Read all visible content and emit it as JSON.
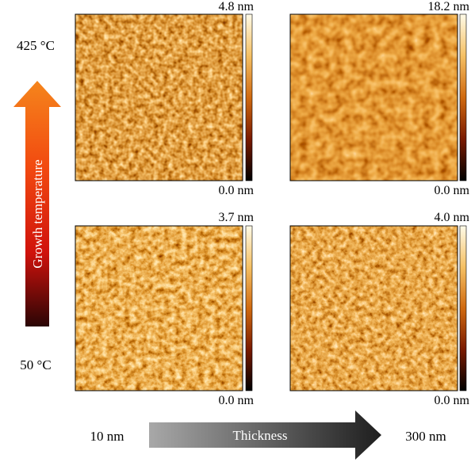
{
  "temperature_axis": {
    "high": "425 °C",
    "low": "50 °C",
    "label": "Growth temperature"
  },
  "thickness_axis": {
    "low": "10 nm",
    "label": "Thickness",
    "high": "300 nm"
  },
  "panels": [
    {
      "max": "4.8 nm",
      "min": "0.0 nm"
    },
    {
      "max": "18.2 nm",
      "min": "0.0 nm"
    },
    {
      "max": "3.7 nm",
      "min": "0.0 nm"
    },
    {
      "max": "4.0 nm",
      "min": "0.0 nm"
    }
  ]
}
